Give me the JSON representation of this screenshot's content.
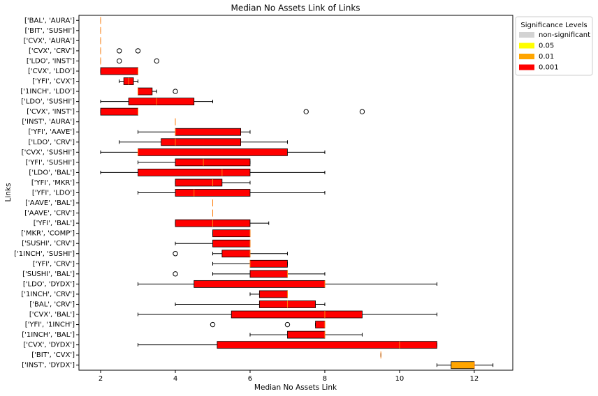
{
  "chart_data": {
    "type": "boxplot",
    "title": "Median No Assets Link of Links",
    "x_label": "Median No Assets Link",
    "y_label": "Links",
    "xlim": [
      1.42,
      13.03
    ],
    "xticks": [
      2,
      4,
      6,
      8,
      10,
      12
    ],
    "median_color": "#ff7f0e",
    "legend_title": "Significance Levels",
    "legend_position": "outside-upper-right",
    "legend": [
      {
        "name": "non-significant",
        "color": "#d3d3d3"
      },
      {
        "name": "0.05",
        "color": "#ffff00"
      },
      {
        "name": "0.01",
        "color": "#ffa500"
      },
      {
        "name": "0.001",
        "color": "#ff0000"
      }
    ],
    "categories": [
      "['BAL', 'AURA']",
      "['BIT', 'SUSHI']",
      "['CVX', 'AURA']",
      "['CVX', 'CRV']",
      "['LDO', 'INST']",
      "['CVX', 'LDO']",
      "['YFI', 'CVX']",
      "['1INCH', 'LDO']",
      "['LDO', 'SUSHI']",
      "['CVX', 'INST']",
      "['INST', 'AURA']",
      "['YFI', 'AAVE']",
      "['LDO', 'CRV']",
      "['CVX', 'SUSHI']",
      "['YFI', 'SUSHI']",
      "['LDO', 'BAL']",
      "['YFI', 'MKR']",
      "['YFI', 'LDO']",
      "['AAVE', 'BAL']",
      "['AAVE', 'CRV']",
      "['YFI', 'BAL']",
      "['MKR', 'COMP']",
      "['SUSHI', 'CRV']",
      "['1INCH', 'SUSHI']",
      "['YFI', 'CRV']",
      "['SUSHI', 'BAL']",
      "['LDO', 'DYDX']",
      "['1INCH', 'CRV']",
      "['BAL', 'CRV']",
      "['CVX', 'BAL']",
      "['YFI', '1INCH']",
      "['1INCH', 'BAL']",
      "['CVX', 'DYDX']",
      "['BIT', 'CVX']",
      "['INST', 'DYDX']"
    ],
    "boxes": [
      {
        "min": 2,
        "q1": 2,
        "median": 2,
        "q3": 2,
        "max": 2,
        "outliers": [],
        "color": "#d3d3d3"
      },
      {
        "min": 2,
        "q1": 2,
        "median": 2,
        "q3": 2,
        "max": 2,
        "outliers": [],
        "color": "#d3d3d3"
      },
      {
        "min": 2,
        "q1": 2,
        "median": 2,
        "q3": 2,
        "max": 2,
        "outliers": [],
        "color": "#d3d3d3"
      },
      {
        "min": 2,
        "q1": 2,
        "median": 2,
        "q3": 2,
        "max": 2,
        "outliers": [
          2.5,
          3
        ],
        "color": "#d3d3d3"
      },
      {
        "min": 2,
        "q1": 2,
        "median": 2,
        "q3": 2,
        "max": 2,
        "outliers": [
          2.5,
          3.5
        ],
        "color": "#d3d3d3"
      },
      {
        "min": 2,
        "q1": 2,
        "median": 3,
        "q3": 3,
        "max": 3,
        "outliers": [],
        "color": "#ff0000"
      },
      {
        "min": 2.5,
        "q1": 2.62,
        "median": 2.75,
        "q3": 2.88,
        "max": 3,
        "outliers": [],
        "color": "#ff0000"
      },
      {
        "min": 3,
        "q1": 3,
        "median": 3,
        "q3": 3.38,
        "max": 3.5,
        "outliers": [
          4
        ],
        "color": "#ff0000"
      },
      {
        "min": 2,
        "q1": 2.75,
        "median": 3.5,
        "q3": 4.5,
        "max": 5,
        "outliers": [],
        "color": "#ff0000"
      },
      {
        "min": 2,
        "q1": 2,
        "median": 3,
        "q3": 3,
        "max": 3,
        "outliers": [
          7.5,
          9
        ],
        "color": "#ff0000"
      },
      {
        "min": 4,
        "q1": 4,
        "median": 4,
        "q3": 4,
        "max": 4,
        "outliers": [],
        "color": "#d3d3d3"
      },
      {
        "min": 3,
        "q1": 4,
        "median": 4,
        "q3": 5.75,
        "max": 6,
        "outliers": [],
        "color": "#ff0000"
      },
      {
        "min": 2.5,
        "q1": 3.62,
        "median": 4,
        "q3": 5.75,
        "max": 7,
        "outliers": [],
        "color": "#ff0000"
      },
      {
        "min": 2,
        "q1": 3,
        "median": 3,
        "q3": 7,
        "max": 8,
        "outliers": [],
        "color": "#ff0000"
      },
      {
        "min": 3,
        "q1": 4,
        "median": 4.75,
        "q3": 6,
        "max": 6,
        "outliers": [],
        "color": "#ff0000"
      },
      {
        "min": 2,
        "q1": 3,
        "median": 5.25,
        "q3": 6,
        "max": 8,
        "outliers": [],
        "color": "#ff0000"
      },
      {
        "min": 4,
        "q1": 4,
        "median": 5,
        "q3": 5.25,
        "max": 6,
        "outliers": [],
        "color": "#ff0000"
      },
      {
        "min": 3,
        "q1": 4,
        "median": 4.5,
        "q3": 6,
        "max": 8,
        "outliers": [],
        "color": "#ff0000"
      },
      {
        "min": 5,
        "q1": 5,
        "median": 5,
        "q3": 5,
        "max": 5,
        "outliers": [],
        "color": "#d3d3d3"
      },
      {
        "min": 5,
        "q1": 5,
        "median": 5,
        "q3": 5,
        "max": 5,
        "outliers": [],
        "color": "#d3d3d3"
      },
      {
        "min": 4,
        "q1": 4,
        "median": 5,
        "q3": 6,
        "max": 6.5,
        "outliers": [],
        "color": "#ff0000"
      },
      {
        "min": 5,
        "q1": 5,
        "median": 6,
        "q3": 6,
        "max": 6,
        "outliers": [],
        "color": "#ff0000"
      },
      {
        "min": 4,
        "q1": 5,
        "median": 6,
        "q3": 6,
        "max": 6,
        "outliers": [],
        "color": "#ff0000"
      },
      {
        "min": 5,
        "q1": 5.25,
        "median": 6,
        "q3": 6,
        "max": 7,
        "outliers": [
          4
        ],
        "color": "#ff0000"
      },
      {
        "min": 5,
        "q1": 6,
        "median": 6,
        "q3": 7,
        "max": 7,
        "outliers": [],
        "color": "#ff0000"
      },
      {
        "min": 5,
        "q1": 6,
        "median": 7,
        "q3": 7,
        "max": 8,
        "outliers": [
          4
        ],
        "color": "#ff0000"
      },
      {
        "min": 3,
        "q1": 4.5,
        "median": 8,
        "q3": 8,
        "max": 11,
        "outliers": [],
        "color": "#ff0000"
      },
      {
        "min": 6,
        "q1": 6.25,
        "median": 7,
        "q3": 7,
        "max": 7,
        "outliers": [],
        "color": "#ff0000"
      },
      {
        "min": 4,
        "q1": 6.25,
        "median": 7,
        "q3": 7.75,
        "max": 8,
        "outliers": [],
        "color": "#ff0000"
      },
      {
        "min": 3,
        "q1": 5.5,
        "median": 8,
        "q3": 9,
        "max": 11,
        "outliers": [],
        "color": "#ff0000"
      },
      {
        "min": 7.75,
        "q1": 7.75,
        "median": 8,
        "q3": 8,
        "max": 8,
        "outliers": [
          5,
          7
        ],
        "color": "#ff0000"
      },
      {
        "min": 6,
        "q1": 7,
        "median": 8,
        "q3": 8,
        "max": 9,
        "outliers": [],
        "color": "#ff0000"
      },
      {
        "min": 3,
        "q1": 5.12,
        "median": 10,
        "q3": 11,
        "max": 11,
        "outliers": [],
        "color": "#ff0000"
      },
      {
        "min": 9.5,
        "q1": 9.5,
        "median": 9.5,
        "q3": 9.5,
        "max": 9.5,
        "outliers": [],
        "color": "#d3d3d3"
      },
      {
        "min": 11,
        "q1": 11.38,
        "median": 12,
        "q3": 12,
        "max": 12.5,
        "outliers": [],
        "color": "#ffa500"
      }
    ]
  }
}
